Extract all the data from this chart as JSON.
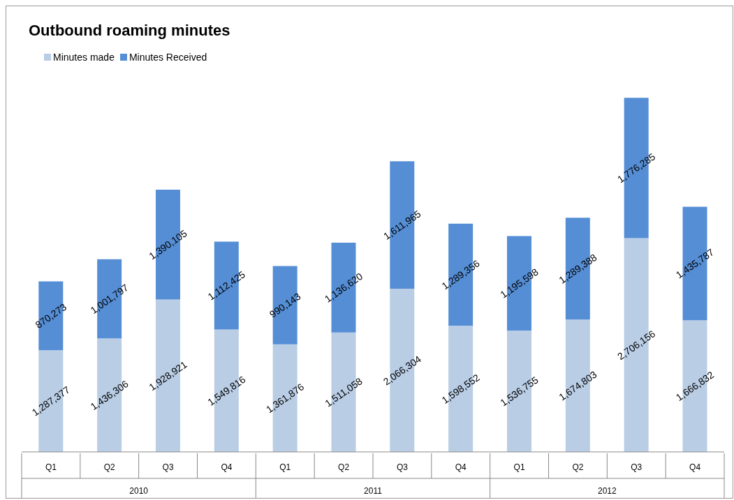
{
  "chart_data": {
    "type": "bar",
    "title": "Outbound roaming minutes",
    "stacked": true,
    "legend": "top left",
    "categories": [
      "Q1",
      "Q2",
      "Q3",
      "Q4",
      "Q1",
      "Q2",
      "Q3",
      "Q4",
      "Q1",
      "Q2",
      "Q3",
      "Q4"
    ],
    "annotations": [
      "2010",
      "2011",
      "2012"
    ],
    "series": [
      {
        "name": "Minutes made",
        "color": "#b9cde5",
        "values": [
          1287377,
          1436306,
          1928921,
          1549816,
          1361876,
          1511058,
          2066304,
          1598552,
          1536755,
          1674803,
          2706156,
          1666832
        ],
        "value_labels": [
          "1,287,377",
          "1,436,306",
          "1,928,921",
          "1,549,816",
          "1,361,876",
          "1,511,058",
          "2,066,304",
          "1,598,552",
          "1,536,755",
          "1,674,803",
          "2,706,156",
          "1,666,832"
        ]
      },
      {
        "name": "Minutes Received",
        "color": "#558ed5",
        "values": [
          870273,
          1001797,
          1390105,
          1112425,
          990143,
          1136620,
          1611965,
          1289356,
          1195598,
          1289388,
          1776285,
          1435787
        ],
        "value_labels": [
          "870,273",
          "1,001,797",
          "1,390,105",
          "1,112,425",
          "990,143",
          "1,136,620",
          "1,611,965",
          "1,289,356",
          "1,195,598",
          "1,289,388",
          "1,776,285",
          "1,435,787"
        ]
      }
    ]
  }
}
